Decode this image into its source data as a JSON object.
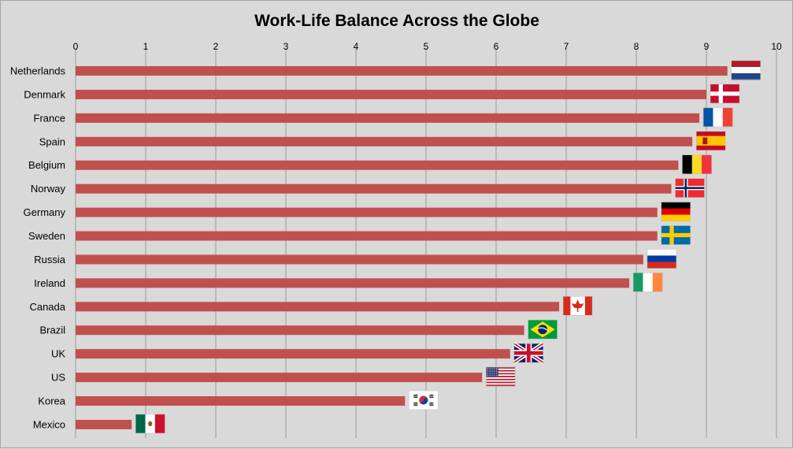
{
  "chart_data": {
    "type": "bar",
    "orientation": "horizontal",
    "title": "Work-Life Balance Across the Globe",
    "xlabel": "",
    "ylabel": "",
    "xlim": [
      0,
      10
    ],
    "x_ticks": [
      "0",
      "1",
      "2",
      "3",
      "4",
      "5",
      "6",
      "7",
      "8",
      "9",
      "10"
    ],
    "x_axis_position": "top",
    "grid": true,
    "legend": "none",
    "bar_color": "#c0504d",
    "categories": [
      "Netherlands",
      "Denmark",
      "France",
      "Spain",
      "Belgium",
      "Norway",
      "Germany",
      "Sweden",
      "Russia",
      "Ireland",
      "Canada",
      "Brazil",
      "UK",
      "US",
      "Korea",
      "Mexico"
    ],
    "values": [
      9.3,
      9.0,
      8.9,
      8.8,
      8.6,
      8.5,
      8.3,
      8.3,
      8.1,
      7.9,
      6.9,
      6.4,
      6.2,
      5.8,
      4.7,
      0.8
    ],
    "flag_icons": [
      "netherlands-flag-icon",
      "denmark-flag-icon",
      "france-flag-icon",
      "spain-flag-icon",
      "belgium-flag-icon",
      "norway-flag-icon",
      "germany-flag-icon",
      "sweden-flag-icon",
      "russia-flag-icon",
      "ireland-flag-icon",
      "canada-flag-icon",
      "brazil-flag-icon",
      "uk-flag-icon",
      "us-flag-icon",
      "korea-flag-icon",
      "mexico-flag-icon"
    ]
  }
}
